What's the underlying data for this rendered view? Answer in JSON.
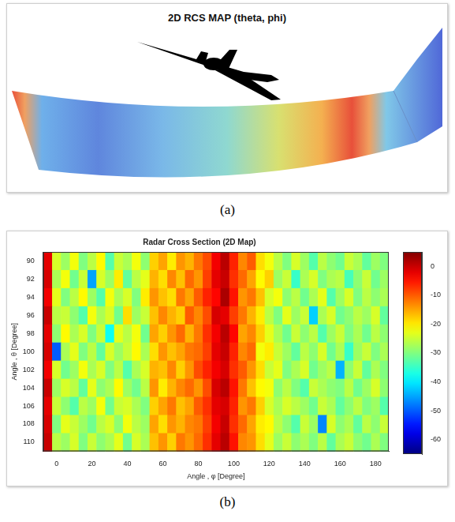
{
  "figure_a": {
    "title": "2D RCS MAP (theta, phi)",
    "caption": "(a)"
  },
  "chart_data": {
    "type": "heatmap",
    "title": "Radar Cross Section (2D Map)",
    "x_label": "Angle , φ [Degree]",
    "y_label": "Angle , θ [Degree]",
    "caption": "(b)",
    "x": [
      -5,
      0,
      5,
      10,
      15,
      20,
      25,
      30,
      35,
      40,
      45,
      50,
      55,
      60,
      65,
      70,
      75,
      80,
      85,
      90,
      95,
      100,
      105,
      110,
      115,
      120,
      125,
      130,
      135,
      140,
      145,
      150,
      155,
      160,
      165,
      170,
      175,
      180,
      185
    ],
    "y": [
      90,
      92,
      94,
      96,
      98,
      100,
      102,
      104,
      106,
      108,
      110
    ],
    "cells": [
      [
        -2,
        -24,
        -28,
        -22,
        -30,
        -26,
        -21,
        -33,
        -25,
        -27,
        -22,
        -29,
        -18,
        -15,
        -20,
        -14,
        -16,
        -12,
        -9,
        -3,
        1,
        -6,
        -13,
        -10,
        -19,
        -22,
        -26,
        -30,
        -24,
        -28,
        -33,
        -26,
        -29,
        -31,
        -25,
        -27,
        -32,
        -28,
        -30
      ],
      [
        -1,
        -27,
        -22,
        -31,
        -25,
        -45,
        -24,
        -28,
        -20,
        -32,
        -26,
        -23,
        -16,
        -19,
        -13,
        -17,
        -11,
        -14,
        -8,
        -2,
        0,
        -7,
        -11,
        -15,
        -21,
        -18,
        -28,
        -25,
        -35,
        -27,
        -24,
        -30,
        -27,
        -26,
        -34,
        -29,
        -25,
        -31,
        -28
      ],
      [
        -3,
        -23,
        -30,
        -26,
        -21,
        -28,
        -33,
        -22,
        -27,
        -24,
        -30,
        -20,
        -14,
        -17,
        -19,
        -12,
        -15,
        -10,
        -6,
        -4,
        2,
        -5,
        -14,
        -12,
        -17,
        -24,
        -22,
        -29,
        -26,
        -31,
        -27,
        -23,
        -33,
        -28,
        -24,
        -30,
        -26,
        -29,
        -27
      ],
      [
        0,
        -26,
        -25,
        -29,
        -33,
        -22,
        -27,
        -24,
        -31,
        -19,
        -28,
        -25,
        -17,
        -13,
        -16,
        -18,
        -10,
        -13,
        -9,
        -1,
        -2,
        -8,
        -12,
        -16,
        -20,
        -26,
        -30,
        -23,
        -28,
        -25,
        -42,
        -27,
        -24,
        -31,
        -29,
        -26,
        -28,
        -24,
        -32
      ],
      [
        -2,
        -29,
        -21,
        -27,
        -24,
        -30,
        -25,
        -38,
        -23,
        -26,
        -22,
        -31,
        -15,
        -18,
        -14,
        -11,
        -16,
        -12,
        -7,
        -3,
        1,
        -4,
        -15,
        -13,
        -18,
        -23,
        -27,
        -31,
        -25,
        -29,
        -26,
        -33,
        -28,
        -25,
        -30,
        -27,
        -31,
        -26,
        -29
      ],
      [
        -1,
        -50,
        -27,
        -23,
        -30,
        -26,
        -32,
        -24,
        -28,
        -25,
        -21,
        -27,
        -19,
        -14,
        -17,
        -15,
        -12,
        -11,
        -8,
        -2,
        0,
        -6,
        -13,
        -11,
        -22,
        -20,
        -25,
        -28,
        -32,
        -26,
        -29,
        -24,
        -31,
        -27,
        -35,
        -28,
        -25,
        -30,
        -27
      ],
      [
        -3,
        -24,
        -31,
        -28,
        -22,
        -27,
        -24,
        -30,
        -26,
        -33,
        -27,
        -24,
        -16,
        -17,
        -13,
        -18,
        -14,
        -9,
        -6,
        -3,
        -1,
        -7,
        -10,
        -14,
        -19,
        -25,
        -23,
        -30,
        -27,
        -24,
        -31,
        -28,
        -26,
        -44,
        -29,
        -25,
        -32,
        -27,
        -30
      ],
      [
        0,
        -28,
        -24,
        -26,
        -32,
        -23,
        -29,
        -27,
        -21,
        -28,
        -31,
        -26,
        -14,
        -20,
        -16,
        -13,
        -11,
        -14,
        -9,
        -1,
        1,
        -5,
        -12,
        -17,
        -21,
        -22,
        -29,
        -26,
        -30,
        -33,
        -25,
        -27,
        -29,
        -30,
        -26,
        -31,
        -28,
        -24,
        -29
      ],
      [
        -2,
        -25,
        -29,
        -33,
        -26,
        -28,
        -22,
        -31,
        -25,
        -24,
        -27,
        -30,
        -18,
        -15,
        -12,
        -17,
        -15,
        -10,
        -7,
        -2,
        -1,
        -6,
        -14,
        -12,
        -18,
        -24,
        -27,
        -24,
        -26,
        -28,
        -31,
        -25,
        -27,
        -32,
        -29,
        -26,
        -30,
        -28,
        -33
      ],
      [
        -1,
        -30,
        -23,
        -25,
        -28,
        -31,
        -26,
        -24,
        -29,
        -22,
        -26,
        -28,
        -15,
        -19,
        -14,
        -16,
        -13,
        -12,
        -8,
        -3,
        0,
        -7,
        -11,
        -15,
        -20,
        -21,
        -26,
        -29,
        -33,
        -25,
        -28,
        -47,
        -24,
        -29,
        -27,
        -32,
        -26,
        -29,
        -25
      ],
      [
        0,
        -26,
        -28,
        -24,
        -30,
        -25,
        -29,
        -27,
        -23,
        -31,
        -24,
        -27,
        -17,
        -14,
        -18,
        -12,
        -14,
        -11,
        -7,
        -2,
        1,
        -5,
        -13,
        -14,
        -19,
        -23,
        -28,
        -25,
        -29,
        -27,
        -30,
        -26,
        -32,
        -27,
        -25,
        -29,
        -31,
        -27,
        -30
      ]
    ],
    "xlim": [
      -7.5,
      187.5
    ],
    "ylim": [
      89,
      111
    ],
    "xticks": [
      0,
      20,
      40,
      60,
      80,
      100,
      120,
      140,
      160,
      180
    ],
    "yticks": [
      90,
      92,
      94,
      96,
      98,
      100,
      102,
      104,
      106,
      108,
      110
    ],
    "colorbar": {
      "range": [
        -65,
        5
      ],
      "ticks": [
        0,
        -10,
        -20,
        -30,
        -40,
        -50,
        -60
      ]
    },
    "grid": false
  }
}
